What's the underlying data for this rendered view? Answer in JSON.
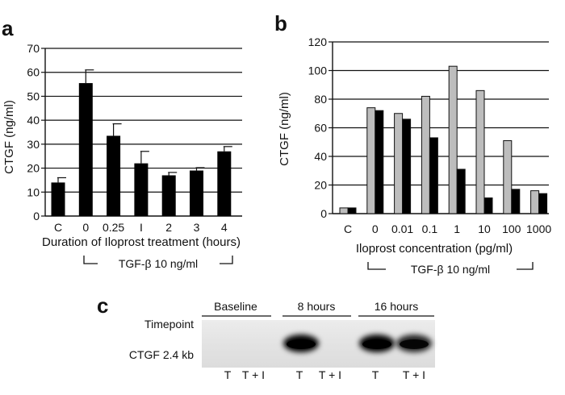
{
  "panels": {
    "a": "a",
    "b": "b",
    "c": "c"
  },
  "chart_data": [
    {
      "type": "bar",
      "panel": "a",
      "categories": [
        "C",
        "0",
        "0.25",
        "I",
        "2",
        "3",
        "4"
      ],
      "values": [
        14,
        55.5,
        33.5,
        22,
        17,
        19,
        27
      ],
      "errors": [
        2,
        5.5,
        5,
        5,
        1.2,
        1.2,
        2
      ],
      "ylabel": "CTGF (ng/ml)",
      "xlabel": "Duration of Iloprost treatment (hours)",
      "bracket_label": "TGF-β 10 ng/ml",
      "ylim": [
        0,
        70
      ],
      "yticks": [
        0,
        10,
        20,
        30,
        40,
        50,
        60,
        70
      ],
      "grid": true,
      "colors": {
        "bar": "#000000"
      }
    },
    {
      "type": "bar",
      "panel": "b",
      "categories": [
        "C",
        "0",
        "0.01",
        "0.1",
        "1",
        "10",
        "100",
        "1000"
      ],
      "series": [
        {
          "values": [
            4,
            74,
            70,
            82,
            103,
            86,
            51,
            16
          ],
          "color": "#bdbdbd"
        },
        {
          "values": [
            4,
            72,
            66,
            53,
            31,
            11,
            17,
            14
          ],
          "color": "#000000"
        }
      ],
      "ylabel": "CTGF (ng/ml)",
      "xlabel": "Iloprost concentration (pg/ml)",
      "bracket_label": "TGF-β 10 ng/ml",
      "ylim": [
        0,
        120
      ],
      "yticks": [
        0,
        20,
        40,
        60,
        80,
        100,
        120
      ],
      "grid": true
    }
  ],
  "blot": {
    "groups": [
      "Baseline",
      "8 hours",
      "16 hours"
    ],
    "row_labels": [
      "Timepoint",
      "CTGF 2.4 kb"
    ],
    "lanes": [
      "T",
      "T + I",
      "T",
      "T + I",
      "T",
      "T + I"
    ],
    "band_intensity": [
      0,
      0,
      1,
      0,
      1,
      0.85
    ]
  }
}
